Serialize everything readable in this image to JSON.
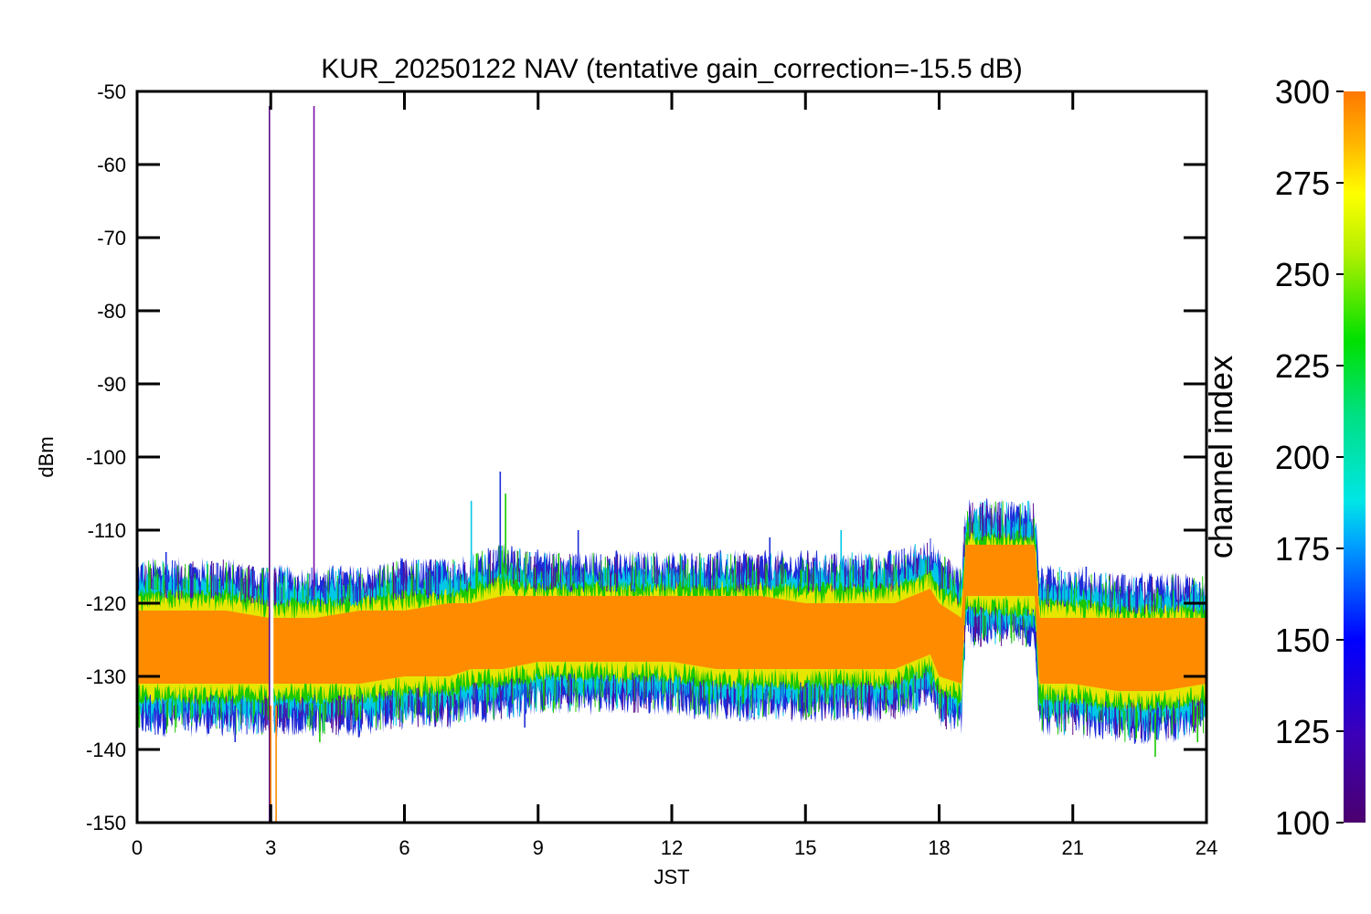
{
  "chart_data": {
    "type": "line",
    "title": "KUR_20250122 NAV (tentative gain_correction=-15.5 dB)",
    "xlabel": "JST",
    "ylabel": "dBm",
    "xlim": [
      0,
      24
    ],
    "ylim": [
      -150,
      -50
    ],
    "x_ticks": [
      "0",
      "3",
      "6",
      "9",
      "12",
      "15",
      "18",
      "21",
      "24"
    ],
    "y_ticks": [
      "-50",
      "-60",
      "-70",
      "-80",
      "-90",
      "-100",
      "-110",
      "-120",
      "-130",
      "-140",
      "-150"
    ],
    "grid": false,
    "colorbar": {
      "label": "channel index",
      "range": [
        100,
        300
      ],
      "ticks": [
        "100",
        "125",
        "150",
        "175",
        "200",
        "225",
        "250",
        "275",
        "300"
      ],
      "colormap": "rainbow (purple-blue-cyan-green-yellow-orange)"
    },
    "band": {
      "description": "spread of per-channel signal level vs time",
      "x": [
        0,
        1,
        2,
        2.95,
        3.1,
        4,
        5,
        6,
        7,
        7.5,
        8.2,
        9,
        10,
        11,
        12,
        13,
        14,
        15,
        16,
        17,
        17.8,
        18.0,
        18.5,
        18.6,
        18.8,
        19.5,
        20.15,
        20.25,
        21,
        22,
        23,
        24
      ],
      "upper": [
        -118,
        -118,
        -118,
        -119,
        -119,
        -119,
        -119,
        -118,
        -118,
        -117,
        -116,
        -117,
        -117,
        -117,
        -117,
        -117,
        -117,
        -117,
        -117,
        -117,
        -115,
        -117,
        -119,
        -110,
        -110,
        -110,
        -110,
        -119,
        -119,
        -120,
        -120,
        -120
      ],
      "lower": [
        -134,
        -134,
        -134,
        -134,
        -134,
        -134,
        -134,
        -133,
        -133,
        -132,
        -132,
        -131,
        -131,
        -131,
        -131,
        -132,
        -132,
        -132,
        -132,
        -132,
        -130,
        -133,
        -134,
        -121,
        -122,
        -122,
        -122,
        -134,
        -134,
        -135,
        -135,
        -134
      ],
      "core_upper": [
        -121,
        -121,
        -121,
        -122,
        -122,
        -122,
        -121,
        -121,
        -120,
        -120,
        -119,
        -119,
        -119,
        -119,
        -119,
        -119,
        -119,
        -120,
        -120,
        -120,
        -118,
        -120,
        -122,
        -112,
        -112,
        -112,
        -112,
        -122,
        -122,
        -122,
        -122,
        -122
      ],
      "core_lower": [
        -131,
        -131,
        -131,
        -131,
        -131,
        -131,
        -131,
        -130,
        -130,
        -129,
        -129,
        -128,
        -128,
        -128,
        -128,
        -129,
        -129,
        -129,
        -129,
        -129,
        -127,
        -130,
        -131,
        -119,
        -119,
        -119,
        -119,
        -131,
        -131,
        -132,
        -132,
        -131
      ]
    },
    "spikes": [
      {
        "x": 2.97,
        "y1": -152,
        "y2": -52,
        "color": "#5b0b8c"
      },
      {
        "x": 3.97,
        "y1": -119,
        "y2": -52,
        "color": "#7a0ea8"
      },
      {
        "x": 3.0,
        "y1": -152,
        "y2": -134,
        "color": "#ff8a00"
      },
      {
        "x": 3.12,
        "y1": -152,
        "y2": -134,
        "color": "#ff8a00"
      },
      {
        "x": 0.65,
        "y1": -118,
        "y2": -113,
        "color": "#1d2cd8"
      },
      {
        "x": 7.5,
        "y1": -117,
        "y2": -106,
        "color": "#00c8e6"
      },
      {
        "x": 8.15,
        "y1": -116,
        "y2": -102,
        "color": "#1d2cd8"
      },
      {
        "x": 8.27,
        "y1": -116,
        "y2": -105,
        "color": "#19c800"
      },
      {
        "x": 9.9,
        "y1": -117,
        "y2": -110,
        "color": "#1d2cd8"
      },
      {
        "x": 14.2,
        "y1": -117,
        "y2": -111,
        "color": "#1d2cd8"
      },
      {
        "x": 15.8,
        "y1": -117,
        "y2": -110,
        "color": "#00c8e6"
      },
      {
        "x": 20.0,
        "y1": -111,
        "y2": -106,
        "color": "#00c8e6"
      },
      {
        "x": 21.3,
        "y1": -119,
        "y2": -115,
        "color": "#1d2cd8"
      },
      {
        "x": 3.2,
        "y1": -134,
        "y2": -137,
        "color": "#1d2cd8"
      },
      {
        "x": 2.2,
        "y1": -134,
        "y2": -139,
        "color": "#1d2cd8"
      },
      {
        "x": 4.1,
        "y1": -134,
        "y2": -139,
        "color": "#19c800"
      },
      {
        "x": 8.7,
        "y1": -131,
        "y2": -137,
        "color": "#1d2cd8"
      },
      {
        "x": 22.85,
        "y1": -135,
        "y2": -141,
        "color": "#19c800"
      },
      {
        "x": 23.8,
        "y1": -134,
        "y2": -139,
        "color": "#19c800"
      },
      {
        "x": 0.05,
        "y1": -134,
        "y2": -137,
        "color": "#19c800"
      }
    ],
    "colors": {
      "frame": "#000000",
      "core": "#ff8c00",
      "yellow": "#e6e600",
      "green": "#19c800",
      "cyan": "#00c8e6",
      "blue": "#1d2cd8",
      "purple": "#5b0b8c"
    }
  }
}
